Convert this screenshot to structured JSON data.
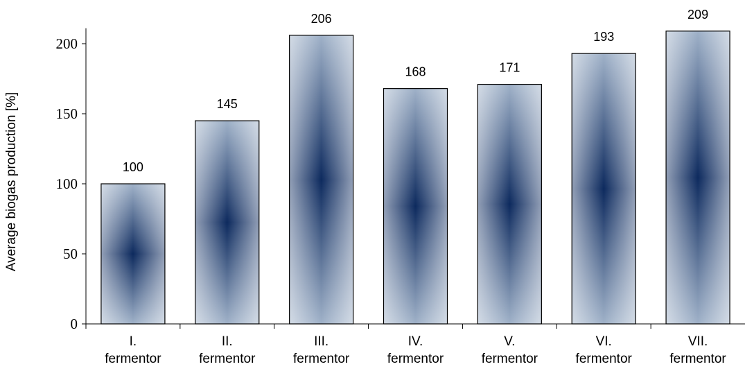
{
  "chart_data": {
    "type": "bar",
    "title": "",
    "xlabel": "",
    "ylabel": "Average biogas production [%]",
    "categories": [
      [
        "I.",
        "fermentor"
      ],
      [
        "II.",
        "fermentor"
      ],
      [
        "III.",
        "fermentor"
      ],
      [
        "IV.",
        "fermentor"
      ],
      [
        "V.",
        "fermentor"
      ],
      [
        "VI.",
        "fermentor"
      ],
      [
        "VII.",
        "fermentor"
      ]
    ],
    "values": [
      100,
      145,
      206,
      168,
      171,
      193,
      209
    ],
    "ylim": [
      0,
      210
    ],
    "yticks": [
      0,
      50,
      100,
      150,
      200
    ],
    "grid": false,
    "legend": "none",
    "colors": {
      "bar_edge": "#1a2f55",
      "bar_center": "#0d2a5e",
      "bar_outer": "#9fb1c8",
      "axis": "#000000"
    }
  }
}
